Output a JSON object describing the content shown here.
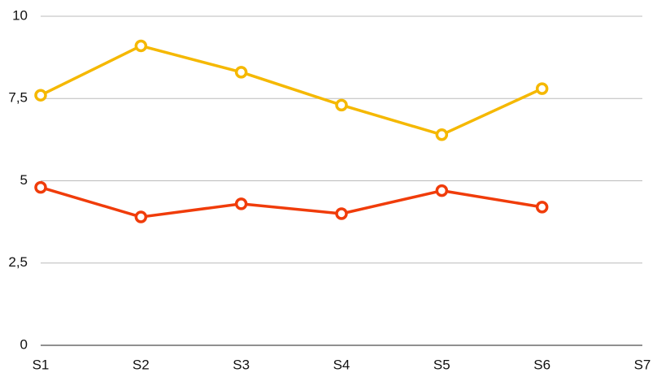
{
  "chart_data": {
    "type": "line",
    "categories": [
      "S1",
      "S2",
      "S3",
      "S4",
      "S5",
      "S6",
      "S7"
    ],
    "series": [
      {
        "color": "#f5b800",
        "values": [
          7.6,
          9.1,
          8.3,
          7.3,
          6.4,
          7.8,
          null
        ]
      },
      {
        "color": "#f03c0a",
        "values": [
          4.8,
          3.9,
          4.3,
          4.0,
          4.7,
          4.2,
          null
        ]
      }
    ],
    "ylim": [
      0,
      10
    ],
    "yticks": [
      0,
      {
        "value": 2.5,
        "label": "2,5"
      },
      5,
      {
        "value": 7.5,
        "label": "7,5"
      },
      10
    ],
    "grid": true
  }
}
